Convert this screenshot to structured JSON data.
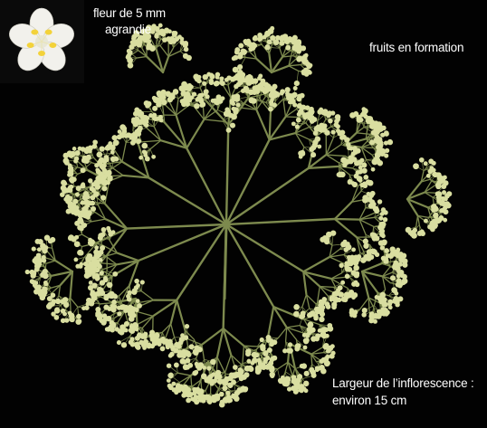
{
  "labels": {
    "flower_line1": "fleur de 5 mm",
    "flower_line2": "agrandie",
    "fruits": "fruits en formation",
    "width_line1": "Largeur de l’inflorescence :",
    "width_line2": "environ 15 cm"
  },
  "colors": {
    "background": "#020202",
    "stem": "#7d8a4e",
    "bud": "#d9dea0",
    "petal": "#f2f1ec",
    "stamen": "#f3d23a",
    "text": "#ffffff"
  }
}
